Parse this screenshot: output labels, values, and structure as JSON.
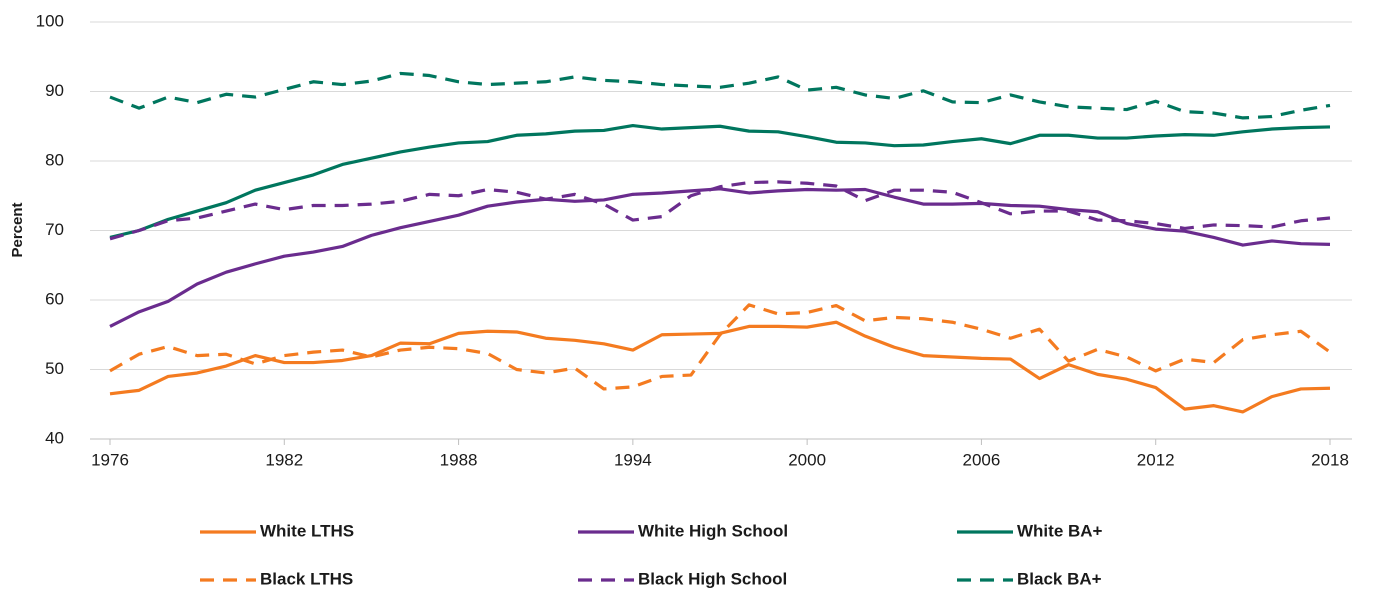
{
  "chart_data": {
    "type": "line",
    "y_label": "Percent",
    "x": [
      1976,
      1977,
      1978,
      1979,
      1980,
      1981,
      1982,
      1983,
      1984,
      1985,
      1986,
      1987,
      1988,
      1989,
      1990,
      1991,
      1992,
      1993,
      1994,
      1995,
      1996,
      1997,
      1998,
      1999,
      2000,
      2001,
      2002,
      2003,
      2004,
      2005,
      2006,
      2007,
      2008,
      2009,
      2010,
      2011,
      2012,
      2013,
      2014,
      2015,
      2016,
      2017,
      2018
    ],
    "xlim": [
      1976,
      2018
    ],
    "xticks": [
      1976,
      1982,
      1988,
      1994,
      2000,
      2006,
      2012,
      2018
    ],
    "ylim": [
      40,
      100
    ],
    "yticks": [
      40,
      50,
      60,
      70,
      80,
      90,
      100
    ],
    "grid": true,
    "legend": "bottom",
    "series": [
      {
        "name": "White LTHS",
        "color": "#f47b20",
        "style": "solid",
        "values": [
          46.5,
          47,
          49,
          49.5,
          50.5,
          52,
          51,
          51,
          51.3,
          52,
          53.8,
          53.7,
          55.2,
          55.5,
          55.4,
          54.5,
          54.2,
          53.7,
          52.8,
          55,
          55.1,
          55.2,
          56.2,
          56.2,
          56.1,
          56.8,
          54.8,
          53.2,
          52,
          51.8,
          51.6,
          51.5,
          48.7,
          50.7,
          49.3,
          48.6,
          47.4,
          44.3,
          44.8,
          43.9,
          46.1,
          47.2,
          47.3
        ]
      },
      {
        "name": "White High School",
        "color": "#6a2c8e",
        "style": "solid",
        "values": [
          56.2,
          58.3,
          59.8,
          62.3,
          64,
          65.2,
          66.3,
          66.9,
          67.7,
          69.3,
          70.4,
          71.3,
          72.2,
          73.5,
          74.1,
          74.5,
          74.2,
          74.4,
          75.2,
          75.4,
          75.7,
          76,
          75.4,
          75.7,
          75.9,
          75.8,
          75.9,
          74.8,
          73.8,
          73.8,
          73.9,
          73.6,
          73.5,
          73,
          72.7,
          71,
          70.2,
          69.9,
          69,
          67.9,
          68.5,
          68.1,
          68
        ]
      },
      {
        "name": "White BA+",
        "color": "#00765e",
        "style": "solid",
        "values": [
          69,
          70,
          71.6,
          72.8,
          74,
          75.8,
          76.9,
          78,
          79.5,
          80.4,
          81.3,
          82,
          82.6,
          82.8,
          83.7,
          83.9,
          84.3,
          84.4,
          85.1,
          84.6,
          84.8,
          85,
          84.3,
          84.2,
          83.5,
          82.7,
          82.6,
          82.2,
          82.3,
          82.8,
          83.2,
          82.5,
          83.7,
          83.7,
          83.3,
          83.3,
          83.6,
          83.8,
          83.7,
          84.2,
          84.6,
          84.8,
          84.9
        ]
      },
      {
        "name": "Black LTHS",
        "color": "#f47b20",
        "style": "dashed",
        "values": [
          49.8,
          52.2,
          53.3,
          52,
          52.2,
          50.8,
          52,
          52.5,
          52.8,
          51.8,
          52.8,
          53.2,
          53,
          52.3,
          50,
          49.5,
          50.2,
          47.2,
          47.5,
          49,
          49.2,
          55,
          59.3,
          58,
          58.2,
          59.2,
          57,
          57.5,
          57.3,
          56.8,
          55.8,
          54.5,
          55.8,
          51.2,
          52.9,
          51.8,
          49.8,
          51.5,
          51,
          54.3,
          55,
          55.5,
          52.5
        ]
      },
      {
        "name": "Black High School",
        "color": "#6a2c8e",
        "style": "dashed",
        "values": [
          68.8,
          70,
          71.4,
          71.8,
          72.8,
          73.8,
          73,
          73.6,
          73.6,
          73.8,
          74.2,
          75.2,
          75,
          75.9,
          75.5,
          74.5,
          75.2,
          73.8,
          71.5,
          72,
          75,
          76.3,
          76.9,
          77,
          76.8,
          76.4,
          74.3,
          75.8,
          75.8,
          75.5,
          74,
          72.4,
          72.8,
          72.8,
          71.5,
          71.4,
          71,
          70.3,
          70.8,
          70.7,
          70.5,
          71.4,
          71.8
        ]
      },
      {
        "name": "Black BA+",
        "color": "#00765e",
        "style": "dashed",
        "values": [
          89.2,
          87.6,
          89.2,
          88.4,
          89.6,
          89.2,
          90.3,
          91.4,
          91,
          91.5,
          92.6,
          92.3,
          91.4,
          91,
          91.2,
          91.4,
          92.1,
          91.6,
          91.4,
          91,
          90.8,
          90.6,
          91.2,
          92.1,
          90.2,
          90.6,
          89.5,
          89,
          90.1,
          88.5,
          88.4,
          89.5,
          88.5,
          87.8,
          87.6,
          87.4,
          88.6,
          87.1,
          86.9,
          86.2,
          86.4,
          87.3,
          88
        ]
      }
    ]
  }
}
